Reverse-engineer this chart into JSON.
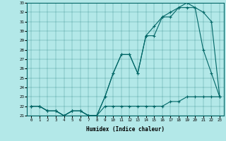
{
  "xlabel": "Humidex (Indice chaleur)",
  "bg_color": "#b3e8e8",
  "line_color": "#006666",
  "hours": [
    0,
    1,
    2,
    3,
    4,
    5,
    6,
    7,
    8,
    9,
    10,
    11,
    12,
    13,
    14,
    15,
    16,
    17,
    18,
    19,
    20,
    21,
    22,
    23
  ],
  "line1": [
    22.0,
    22.0,
    21.5,
    21.5,
    21.0,
    21.5,
    21.5,
    21.0,
    21.0,
    22.0,
    22.0,
    22.0,
    22.0,
    22.0,
    22.0,
    22.0,
    22.0,
    22.5,
    22.5,
    23.0,
    23.0,
    23.0,
    23.0,
    23.0
  ],
  "line2": [
    22.0,
    22.0,
    21.5,
    21.5,
    21.0,
    21.5,
    21.5,
    21.0,
    21.0,
    23.0,
    25.5,
    27.5,
    27.5,
    25.5,
    29.5,
    29.5,
    31.5,
    31.5,
    32.5,
    33.0,
    32.5,
    28.0,
    25.5,
    23.0
  ],
  "line3": [
    22.0,
    22.0,
    21.5,
    21.5,
    21.0,
    21.5,
    21.5,
    21.0,
    21.0,
    23.0,
    25.5,
    27.5,
    27.5,
    25.5,
    29.5,
    30.5,
    31.5,
    32.0,
    32.5,
    32.5,
    32.5,
    32.0,
    31.0,
    23.0
  ],
  "ylim_min": 21,
  "ylim_max": 33,
  "yticks": [
    21,
    22,
    23,
    24,
    25,
    26,
    27,
    28,
    29,
    30,
    31,
    32,
    33
  ]
}
